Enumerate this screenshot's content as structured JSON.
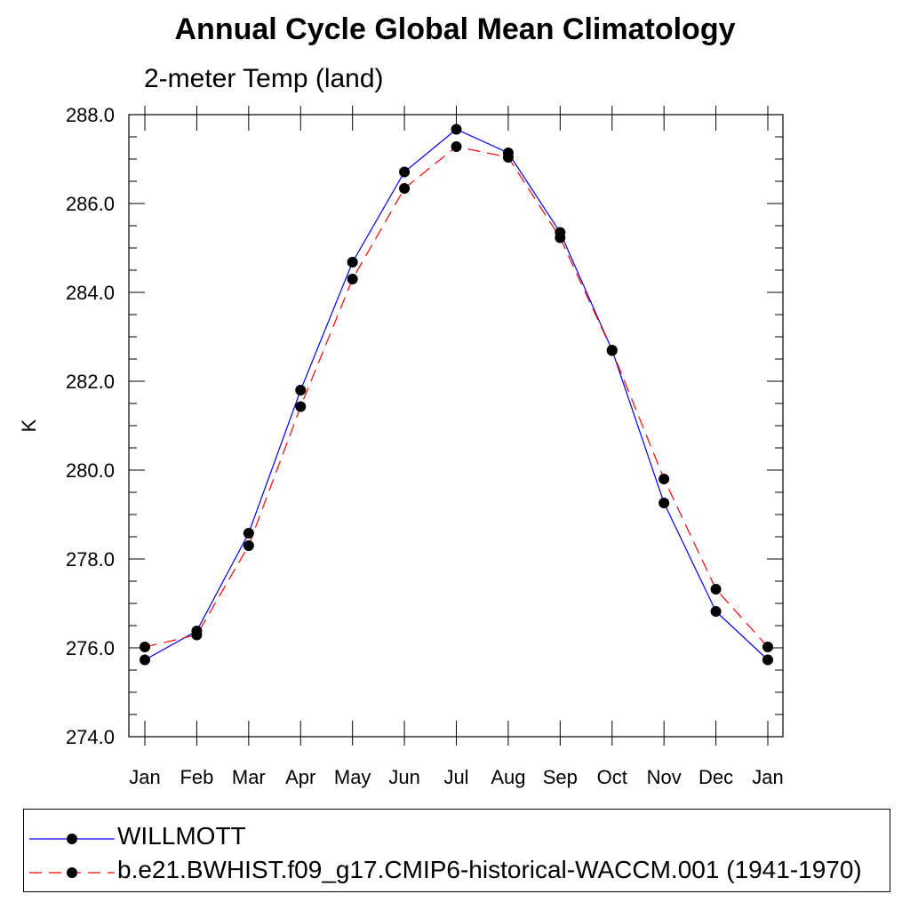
{
  "chart_data": {
    "type": "line",
    "title": "Annual Cycle Global Mean Climatology",
    "subtitle": "2-meter Temp (land)",
    "ylabel": "K",
    "xlabel": "",
    "categories": [
      "Jan",
      "Feb",
      "Mar",
      "Apr",
      "May",
      "Jun",
      "Jul",
      "Aug",
      "Sep",
      "Oct",
      "Nov",
      "Dec",
      "Jan"
    ],
    "ylim": [
      274.0,
      288.0
    ],
    "yticks": [
      "274.0",
      "276.0",
      "278.0",
      "280.0",
      "282.0",
      "284.0",
      "286.0",
      "288.0"
    ],
    "ytick_values": [
      274,
      276,
      278,
      280,
      282,
      284,
      286,
      288
    ],
    "grid": false,
    "legend_position": "bottom",
    "series": [
      {
        "name": "WILLMOTT",
        "color": "#0000ff",
        "line_style": "solid",
        "marker": "filled-circle",
        "values": [
          275.73,
          276.38,
          278.58,
          281.8,
          284.68,
          286.71,
          287.67,
          287.14,
          285.35,
          282.7,
          279.26,
          276.82,
          275.73
        ]
      },
      {
        "name": "b.e21.BWHIST.f09_g17.CMIP6-historical-WACCM.001 (1941-1970)",
        "color": "#ff0000",
        "line_style": "dashed",
        "marker": "filled-circle",
        "values": [
          276.02,
          276.29,
          278.3,
          281.43,
          284.3,
          286.34,
          287.28,
          287.04,
          285.23,
          282.69,
          279.8,
          277.32,
          276.02
        ]
      }
    ]
  }
}
